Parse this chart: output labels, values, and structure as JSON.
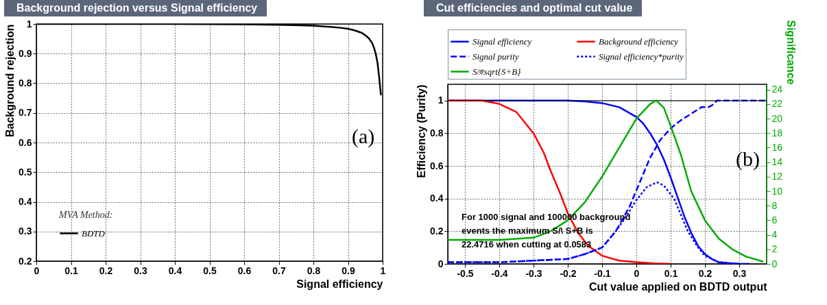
{
  "chart_data": [
    {
      "type": "line",
      "title": "Background rejection versus Signal efficiency",
      "xlabel": "Signal efficiency",
      "ylabel": "Background rejection",
      "legend_title": "MVA Method:",
      "legend": "bottom left",
      "grid": true,
      "marker": "none",
      "line_style": "solid",
      "xlim": [
        0,
        1
      ],
      "xticks": [
        0,
        0.1,
        0.2,
        0.3,
        0.4,
        0.5,
        0.6,
        0.7,
        0.8,
        0.9,
        1
      ],
      "ylim": [
        0.2,
        1
      ],
      "yticks": [
        0.2,
        0.3,
        0.4,
        0.5,
        0.6,
        0.7,
        0.8,
        0.9,
        1
      ],
      "annotations": [
        "(a)"
      ],
      "series": [
        {
          "name": "BDTD",
          "color": "#000000",
          "x": [
            0,
            0.2,
            0.4,
            0.6,
            0.7,
            0.75,
            0.8,
            0.85,
            0.88,
            0.9,
            0.92,
            0.94,
            0.95,
            0.96,
            0.97,
            0.975,
            0.98,
            0.985,
            0.99,
            0.995
          ],
          "values": [
            1,
            1,
            1,
            0.999,
            0.997,
            0.996,
            0.994,
            0.99,
            0.987,
            0.984,
            0.978,
            0.97,
            0.962,
            0.952,
            0.935,
            0.92,
            0.9,
            0.87,
            0.82,
            0.76
          ]
        }
      ]
    },
    {
      "type": "line",
      "title": "Cut efficiencies and optimal cut value",
      "xlabel": "Cut value applied on BDTD output",
      "ylabel": "Efficiency (Purity)",
      "y2label": "Significance",
      "legend": "top",
      "grid": true,
      "marker": "none",
      "xlim": [
        -0.55,
        0.38
      ],
      "xticks": [
        -0.5,
        -0.4,
        -0.3,
        -0.2,
        -0.1,
        0,
        0.1,
        0.2,
        0.3
      ],
      "ylim": [
        0,
        1.1
      ],
      "yticks": [
        0,
        0.2,
        0.4,
        0.6,
        0.8,
        1
      ],
      "y2lim": [
        0,
        24.72
      ],
      "y2ticks": [
        0,
        2,
        4,
        6,
        8,
        10,
        12,
        14,
        16,
        18,
        20,
        22,
        24
      ],
      "ref_lines": [
        {
          "axis": "y",
          "value": 1,
          "color": "#000000"
        }
      ],
      "annotations": [
        "(b)",
        "For 1000 signal and 100000 background\nevents the maximum S/\\ S+B is\n22.4716 when cutting at 0.0583"
      ],
      "series": [
        {
          "name": "Signal efficiency",
          "color": "#0000ff",
          "line_style": "solid",
          "x": [
            -0.55,
            -0.3,
            -0.2,
            -0.15,
            -0.1,
            -0.05,
            0,
            0.02,
            0.04,
            0.06,
            0.08,
            0.1,
            0.12,
            0.14,
            0.16,
            0.18,
            0.2,
            0.22,
            0.24,
            0.27,
            0.3,
            0.33
          ],
          "values": [
            1,
            1,
            1,
            0.995,
            0.985,
            0.96,
            0.9,
            0.86,
            0.8,
            0.73,
            0.64,
            0.53,
            0.41,
            0.29,
            0.19,
            0.11,
            0.06,
            0.03,
            0.01,
            0.004,
            0.001,
            0
          ]
        },
        {
          "name": "Background efficiency",
          "color": "#ff0000",
          "line_style": "solid",
          "x": [
            -0.55,
            -0.45,
            -0.4,
            -0.35,
            -0.3,
            -0.27,
            -0.25,
            -0.22,
            -0.2,
            -0.17,
            -0.14,
            -0.1,
            -0.05,
            0,
            0.05,
            0.1
          ],
          "values": [
            1,
            1,
            0.98,
            0.93,
            0.8,
            0.68,
            0.57,
            0.42,
            0.31,
            0.19,
            0.11,
            0.05,
            0.02,
            0.01,
            0.003,
            0
          ]
        },
        {
          "name": "Signal purity",
          "color": "#0000ff",
          "line_style": "dashed",
          "x": [
            -0.55,
            -0.4,
            -0.3,
            -0.2,
            -0.15,
            -0.1,
            -0.06,
            -0.02,
            0.01,
            0.04,
            0.07,
            0.1,
            0.13,
            0.16,
            0.19,
            0.21,
            0.22,
            0.235,
            0.3,
            0.38
          ],
          "values": [
            0.01,
            0.01,
            0.02,
            0.03,
            0.06,
            0.1,
            0.2,
            0.35,
            0.5,
            0.65,
            0.76,
            0.83,
            0.88,
            0.92,
            0.96,
            0.96,
            0.97,
            1,
            1,
            1
          ]
        },
        {
          "name": "Signal efficiency*purity",
          "color": "#0000ff",
          "line_style": "dotted",
          "x": [
            -0.55,
            -0.4,
            -0.3,
            -0.2,
            -0.15,
            -0.1,
            -0.06,
            -0.03,
            0,
            0.03,
            0.06,
            0.08,
            0.11,
            0.13,
            0.15,
            0.18,
            0.2,
            0.24,
            0.3
          ],
          "values": [
            0.01,
            0.01,
            0.02,
            0.03,
            0.06,
            0.1,
            0.2,
            0.29,
            0.39,
            0.47,
            0.5,
            0.48,
            0.4,
            0.3,
            0.2,
            0.1,
            0.05,
            0.01,
            0
          ]
        },
        {
          "name": "S/#sqrt{S+B}",
          "color": "#00aa00",
          "line_style": "solid",
          "axis": "y2",
          "x": [
            -0.55,
            -0.4,
            -0.3,
            -0.25,
            -0.2,
            -0.15,
            -0.1,
            -0.05,
            0,
            0.04,
            0.058,
            0.08,
            0.1,
            0.13,
            0.16,
            0.2,
            0.24,
            0.28,
            0.32,
            0.37
          ],
          "values": [
            3.3,
            3.3,
            3.6,
            4.5,
            6,
            8.5,
            12,
            16,
            20,
            22,
            22.5,
            21.5,
            19,
            15,
            10,
            6,
            3.5,
            2,
            1,
            0.3
          ]
        }
      ]
    }
  ]
}
